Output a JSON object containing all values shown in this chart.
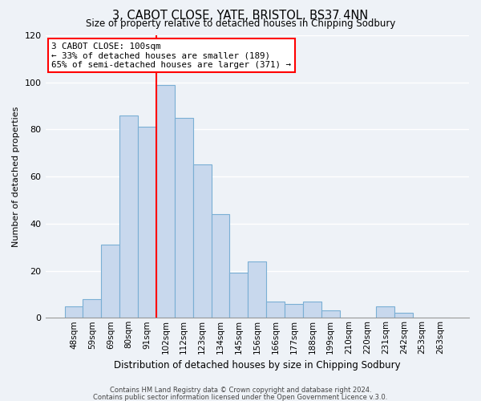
{
  "title": "3, CABOT CLOSE, YATE, BRISTOL, BS37 4NN",
  "subtitle": "Size of property relative to detached houses in Chipping Sodbury",
  "xlabel": "Distribution of detached houses by size in Chipping Sodbury",
  "ylabel": "Number of detached properties",
  "bar_labels": [
    "48sqm",
    "59sqm",
    "69sqm",
    "80sqm",
    "91sqm",
    "102sqm",
    "112sqm",
    "123sqm",
    "134sqm",
    "145sqm",
    "156sqm",
    "166sqm",
    "177sqm",
    "188sqm",
    "199sqm",
    "210sqm",
    "220sqm",
    "231sqm",
    "242sqm",
    "253sqm",
    "263sqm"
  ],
  "bar_heights": [
    5,
    8,
    31,
    86,
    81,
    99,
    85,
    65,
    44,
    19,
    24,
    7,
    6,
    7,
    3,
    0,
    0,
    5,
    2,
    0,
    0
  ],
  "bar_color": "#c8d8ed",
  "bar_edge_color": "#7aafd4",
  "vline_color": "red",
  "vline_x_index": 5,
  "annotation_line0": "3 CABOT CLOSE: 100sqm",
  "annotation_line1": "← 33% of detached houses are smaller (189)",
  "annotation_line2": "65% of semi-detached houses are larger (371) →",
  "annotation_box_color": "white",
  "annotation_box_edge": "red",
  "ylim": [
    0,
    120
  ],
  "yticks": [
    0,
    20,
    40,
    60,
    80,
    100,
    120
  ],
  "footer1": "Contains HM Land Registry data © Crown copyright and database right 2024.",
  "footer2": "Contains public sector information licensed under the Open Government Licence v.3.0.",
  "background_color": "#eef2f7"
}
